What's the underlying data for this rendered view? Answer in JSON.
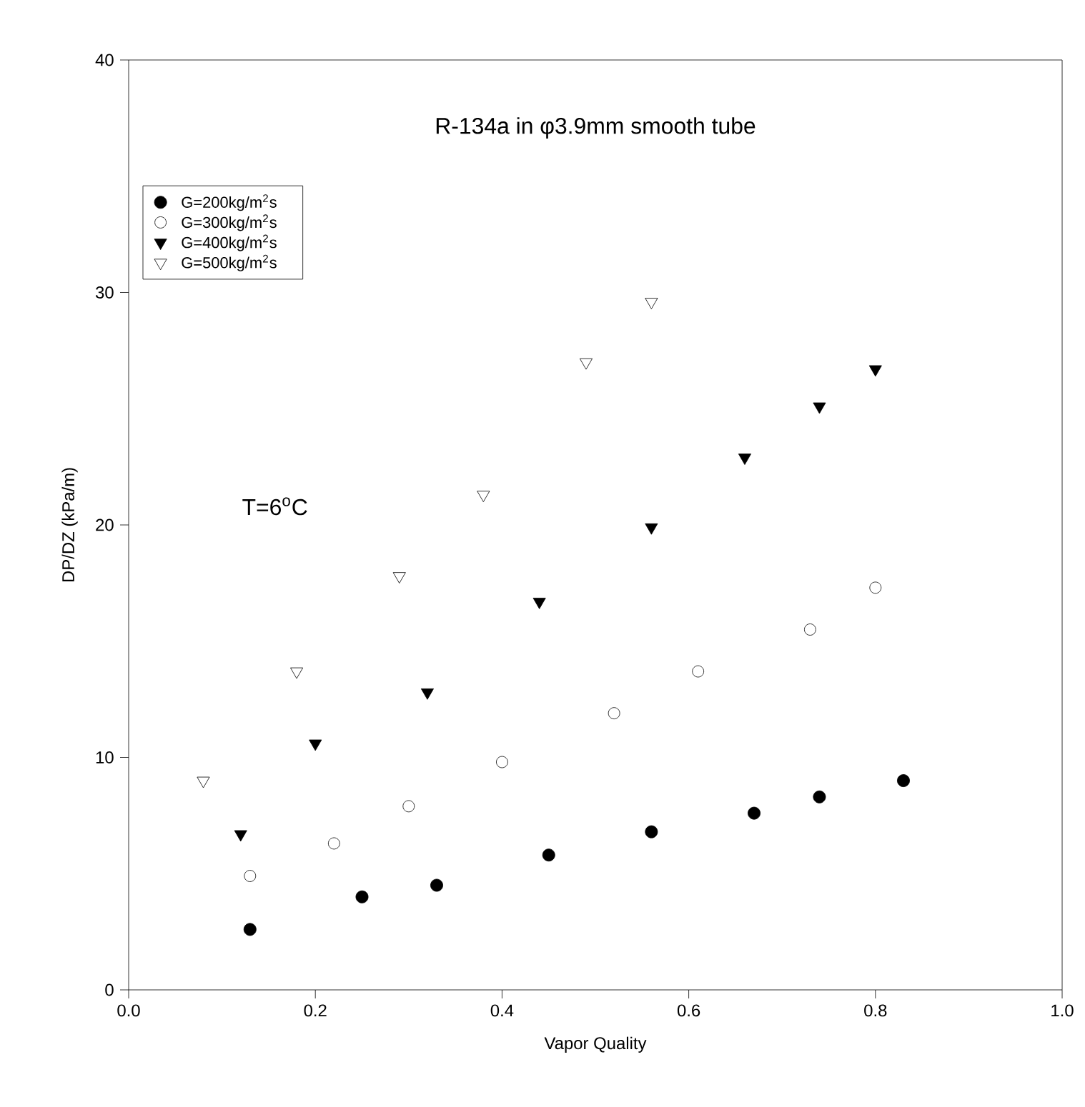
{
  "chart_data": {
    "type": "scatter",
    "title": "R-134a in φ3.9mm smooth tube",
    "xlabel": "Vapor Quality",
    "ylabel": "DP/DZ (kPa/m)",
    "annotations": [
      "T=6$^{o}$C"
    ],
    "xlim": [
      0,
      1
    ],
    "ylim": [
      0,
      40
    ],
    "xticks": [
      {
        "value": 0,
        "label": "0.0"
      },
      {
        "value": 0.2,
        "label": "0.2"
      },
      {
        "value": 0.4,
        "label": "0.4"
      },
      {
        "value": 0.6,
        "label": "0.6"
      },
      {
        "value": 0.8,
        "label": "0.8"
      },
      {
        "value": 1,
        "label": "1.0"
      }
    ],
    "yticks": [
      0,
      10,
      20,
      30,
      40
    ],
    "legend": "top left",
    "grid": false,
    "series": [
      {
        "name": "G=200kg/m$^{2}$s",
        "color": "#000000",
        "marker": "circle",
        "x": [
          0.13,
          0.25,
          0.33,
          0.45,
          0.56,
          0.67,
          0.74,
          0.83
        ],
        "values": [
          2.6,
          4.0,
          4.5,
          5.8,
          6.8,
          7.6,
          8.3,
          9.0
        ]
      },
      {
        "name": "G=300kg/m$^{2}$s",
        "color": "#000000",
        "marker": "circle-open",
        "x": [
          0.13,
          0.22,
          0.3,
          0.4,
          0.52,
          0.61,
          0.73,
          0.8
        ],
        "values": [
          4.9,
          6.3,
          7.9,
          9.8,
          11.9,
          13.7,
          15.5,
          17.3
        ]
      },
      {
        "name": "G=400kg/m$^{2}$s",
        "color": "#000000",
        "marker": "triangle-down",
        "x": [
          0.12,
          0.2,
          0.32,
          0.44,
          0.56,
          0.66,
          0.74,
          0.8
        ],
        "values": [
          6.7,
          10.6,
          12.8,
          16.7,
          19.9,
          22.9,
          25.1,
          26.7
        ]
      },
      {
        "name": "G=500kg/m$^{2}$s",
        "color": "#000000",
        "marker": "triangle-down-open",
        "x": [
          0.08,
          0.18,
          0.29,
          0.38,
          0.49,
          0.56
        ],
        "values": [
          9.0,
          13.7,
          17.8,
          21.3,
          27.0,
          29.6
        ]
      }
    ]
  }
}
